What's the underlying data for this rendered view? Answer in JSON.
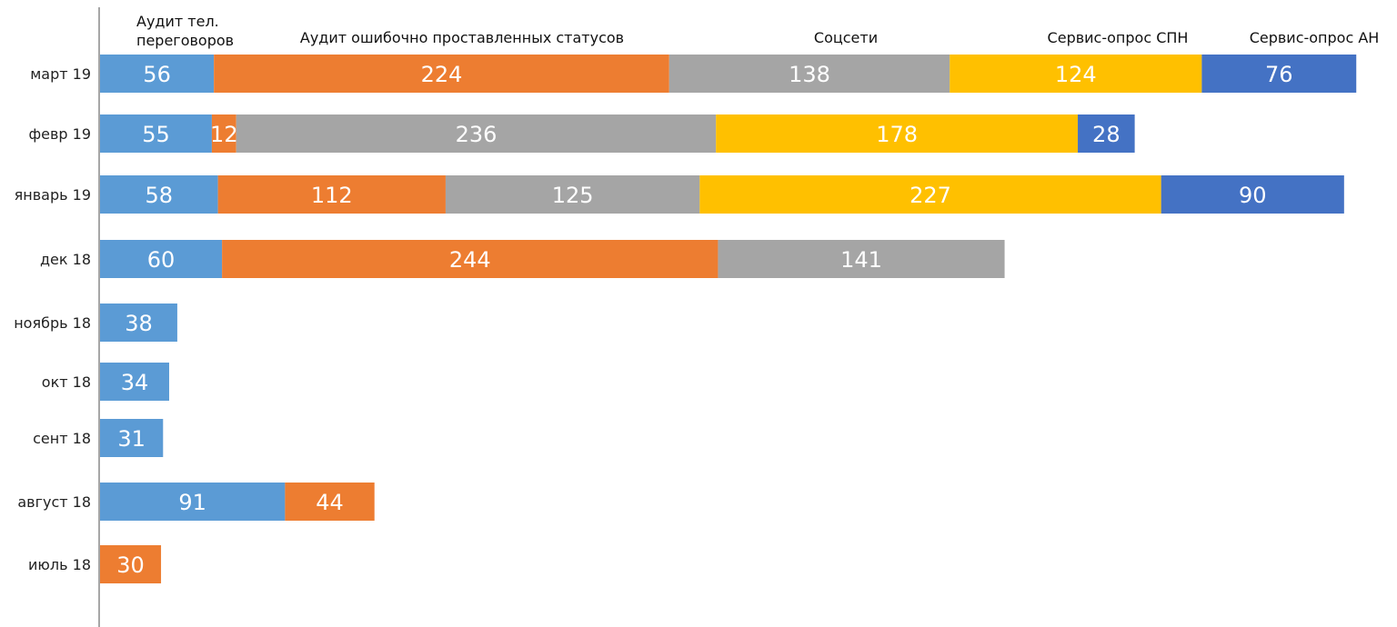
{
  "chart_data": {
    "type": "bar",
    "orientation": "horizontal",
    "stacked": true,
    "categories": [
      "март 19",
      "февр 19",
      "январь 19",
      "дек 18",
      "ноябрь 18",
      "окт 18",
      "сент 18",
      "август 18",
      "июль 18"
    ],
    "series": [
      {
        "name": "Аудит тел. переговоров",
        "color": "#5b9bd5",
        "values": [
          56,
          55,
          58,
          60,
          38,
          34,
          31,
          91,
          null
        ]
      },
      {
        "name": "Аудит ошибочно проставленных статусов",
        "color": "#ed7d31",
        "values": [
          224,
          12,
          112,
          244,
          null,
          null,
          null,
          44,
          30
        ]
      },
      {
        "name": "Соцсети",
        "color": "#a5a5a5",
        "values": [
          138,
          236,
          125,
          141,
          null,
          null,
          null,
          null,
          null
        ]
      },
      {
        "name": "Сервис-опрос СПН",
        "color": "#ffc000",
        "values": [
          124,
          178,
          227,
          null,
          null,
          null,
          null,
          null,
          null
        ]
      },
      {
        "name": "Сервис-опрос АН",
        "color": "#4472c4",
        "values": [
          76,
          28,
          90,
          null,
          null,
          null,
          null,
          null,
          null
        ]
      }
    ],
    "legend": "top",
    "grid": false,
    "data_labels": true
  }
}
